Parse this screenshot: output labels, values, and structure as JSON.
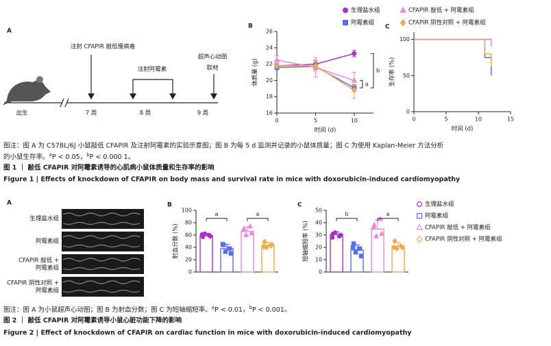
{
  "figure1": {
    "panel_a": {
      "letter": "A",
      "events": {
        "lentivirus": "注射 CFAPIR 敲低慢病毒",
        "doxorubicin": "注射阿霉素",
        "echo": "超声心动图",
        "harvest": "取材"
      },
      "timepoints": [
        "出生",
        "7 周",
        "8 周",
        "9 周"
      ]
    },
    "note_lines": [
      "图注：图 A 为 C57BL/6J 小鼠敲低 CFAPIR 及注射阿霉素的实验示意图；图 B 为每 5 d 监测并记录的小鼠体质量；图 C 为使用 Kaplan-Meier 方法分析",
      "的小鼠生存率。"
    ],
    "sig": [
      {
        "mark": "a",
        "text": "P < 0.05，"
      },
      {
        "mark": "b",
        "text": "P < 0.000 1。"
      }
    ],
    "title": "图 1 ｜ 敲低 CFAPIR 对阿霉素诱导的心肌病小鼠体质量和生存率的影响",
    "title_en": "Figure 1 | Effects of knockdown of CFAPIR on body mass and survival rate in mice with doxorubicin-induced cardiomyopathy"
  },
  "figure2": {
    "panel_a": {
      "letter": "A",
      "rows": [
        [
          "生理盐水组"
        ],
        [
          "阿霉素组"
        ],
        [
          "CFAPIR 敲低 +",
          "阿霉素组"
        ],
        [
          "CFAPIR 阴性对照 +",
          "阿霉素组"
        ]
      ]
    },
    "note": "图注：图 A 为小鼠超声心动图；图 B 为射血分数；图 C 为短轴缩短率。",
    "sig": [
      {
        "mark": "a",
        "text": "P < 0.01，"
      },
      {
        "mark": "b",
        "text": "P < 0.001。"
      }
    ],
    "title": "图 2 ｜ 敲低 CFAPIR 对阿霉素诱导小鼠心脏功能下降的影响",
    "title_en": "Figure 2 | Effect of knockdown of CFAPIR on cardiac function in mice with doxorubicin-induced cardiomyopathy"
  },
  "chart_data": [
    {
      "type": "line",
      "panel": "B",
      "xlabel": "时间 (d)",
      "ylabel": "体质量 (g)",
      "legend": "top",
      "x": [
        0,
        5,
        10
      ],
      "xlim": [
        0,
        12.5
      ],
      "xticks": [
        0,
        5,
        10
      ],
      "ylim": [
        16,
        26
      ],
      "yticks": [
        16,
        18,
        20,
        22,
        24,
        26
      ],
      "series": [
        {
          "name": "生理盐水组",
          "color": "#a832c8",
          "marker": "circle",
          "values": [
            21.8,
            22.0,
            23.3
          ],
          "errors": [
            0.3,
            0.4,
            0.4
          ]
        },
        {
          "name": "阿霉素组",
          "color": "#5a6ee6",
          "marker": "square",
          "values": [
            21.6,
            21.7,
            19.1
          ],
          "errors": [
            0.3,
            0.4,
            0.4
          ]
        },
        {
          "name": "CFAPIR 敲低 + 阿霉素组",
          "color": "#e889d8",
          "marker": "triangle",
          "values": [
            22.5,
            21.6,
            20.0
          ],
          "errors": [
            0.5,
            1.2,
            1.0
          ]
        },
        {
          "name": "CFAPIR 阴性对照 + 阿霉素组",
          "color": "#f2a94d",
          "marker": "diamond",
          "values": [
            21.8,
            21.8,
            18.8
          ],
          "errors": [
            0.3,
            0.7,
            1.0
          ]
        }
      ],
      "annotations": [
        "b",
        "a"
      ]
    },
    {
      "type": "step",
      "panel": "C",
      "xlabel": "时间 (d)",
      "ylabel": "生存率 (%)",
      "x": [
        0,
        11,
        12
      ],
      "xlim": [
        0,
        15
      ],
      "xticks": [
        0,
        5,
        10,
        15
      ],
      "ylim": [
        0,
        110
      ],
      "yticks": [
        0,
        50,
        100
      ],
      "series": [
        {
          "color": "#a832c8",
          "values": [
            100,
            100,
            100
          ]
        },
        {
          "color": "#5a6ee6",
          "values": [
            100,
            75,
            50
          ]
        },
        {
          "color": "#e889d8",
          "values": [
            100,
            100,
            90
          ]
        },
        {
          "color": "#f2a94d",
          "values": [
            100,
            80,
            62
          ]
        }
      ]
    },
    {
      "type": "bar",
      "panel": "B",
      "ylabel": "射血分数 (%)",
      "legend": "right",
      "ylim": [
        0,
        100
      ],
      "yticks": [
        0,
        20,
        40,
        60,
        80,
        100
      ],
      "series": [
        {
          "name": "生理盐水组",
          "color": "#a832c8",
          "marker": "circle",
          "values": [
            59
          ],
          "errors": [
            3
          ],
          "points": [
            57,
            60,
            62,
            58,
            61
          ]
        },
        {
          "name": "阿霉素组",
          "color": "#5a6ee6",
          "marker": "square",
          "values": [
            38
          ],
          "errors": [
            7
          ],
          "points": [
            44,
            38,
            33,
            30,
            45
          ]
        },
        {
          "name": "CFAPIR 敲低 + 阿霉素组",
          "color": "#e889d8",
          "marker": "triangle",
          "values": [
            66
          ],
          "errors": [
            7
          ],
          "points": [
            70,
            74,
            60,
            63,
            68
          ]
        },
        {
          "name": "CFAPIR 阴性对照 + 阿霉素组",
          "color": "#f2a94d",
          "marker": "diamond",
          "values": [
            43
          ],
          "errors": [
            5
          ],
          "points": [
            49,
            43,
            40,
            44,
            41
          ]
        }
      ],
      "annotations": [
        "a",
        "a"
      ]
    },
    {
      "type": "bar",
      "panel": "C",
      "ylabel": "短轴缩短率 (%)",
      "ylim": [
        0,
        50
      ],
      "yticks": [
        0,
        10,
        20,
        30,
        40,
        50
      ],
      "series": [
        {
          "color": "#a832c8",
          "marker": "circle",
          "values": [
            30.5
          ],
          "errors": [
            2
          ],
          "points": [
            31,
            29,
            32,
            30,
            28
          ]
        },
        {
          "color": "#5a6ee6",
          "marker": "square",
          "values": [
            18
          ],
          "errors": [
            4
          ],
          "points": [
            23,
            19,
            16,
            13,
            20
          ]
        },
        {
          "color": "#e889d8",
          "marker": "triangle",
          "values": [
            35
          ],
          "errors": [
            7
          ],
          "points": [
            38,
            43,
            29,
            31,
            36
          ]
        },
        {
          "color": "#f2a94d",
          "marker": "diamond",
          "values": [
            21
          ],
          "errors": [
            3
          ],
          "points": [
            25,
            21,
            19,
            20,
            20
          ]
        }
      ],
      "annotations": [
        "b",
        "a"
      ]
    }
  ]
}
